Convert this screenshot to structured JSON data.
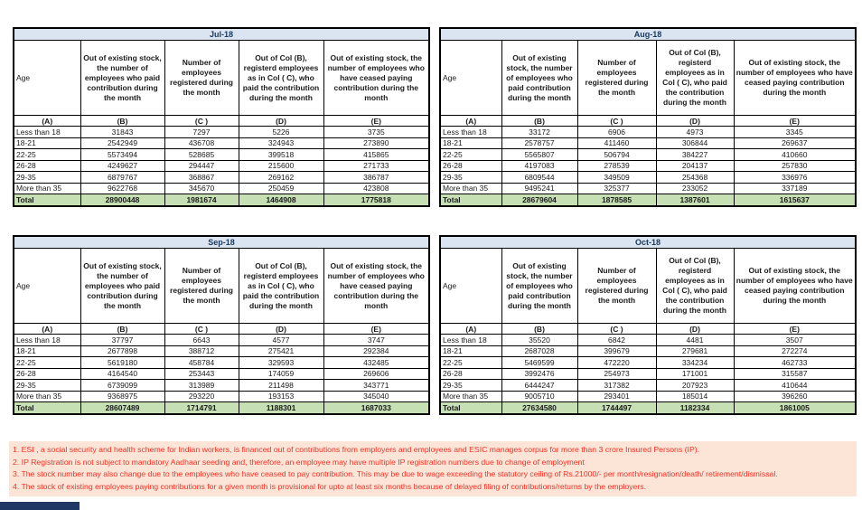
{
  "columns": {
    "age_label": "Age",
    "col_b": "Out of existing stock, the number of employees who paid contribution during the month",
    "col_c": "Number of employees registered during the month",
    "col_d": "Out of Col (B), registerd employees as in Col ( C), who paid the contribution during the month",
    "col_e": "Out of existing stock, the number of  employees who have ceased paying contribution during the month",
    "letters": [
      "(A)",
      "(B)",
      "(C )",
      "(D)",
      "(E)"
    ]
  },
  "age_groups": [
    "Less than 18",
    "18-21",
    "22-25",
    "26-28",
    "29-35",
    "More than 35"
  ],
  "total_label": "Total",
  "tables": [
    {
      "title": "Jul-18",
      "rows": [
        [
          31843,
          7297,
          5226,
          3735
        ],
        [
          2542949,
          436708,
          324943,
          273890
        ],
        [
          5573494,
          528685,
          399518,
          415865
        ],
        [
          4249627,
          294447,
          215600,
          271733
        ],
        [
          6879767,
          368867,
          269162,
          386787
        ],
        [
          9622768,
          345670,
          250459,
          423808
        ]
      ],
      "total": [
        28900448,
        1981674,
        1464908,
        1775818
      ]
    },
    {
      "title": "Aug-18",
      "rows": [
        [
          33172,
          6906,
          4973,
          3345
        ],
        [
          2578757,
          411460,
          306844,
          269637
        ],
        [
          5565807,
          506794,
          384227,
          410660
        ],
        [
          4197083,
          278539,
          204137,
          257830
        ],
        [
          6809544,
          349509,
          254368,
          336976
        ],
        [
          9495241,
          325377,
          233052,
          337189
        ]
      ],
      "total": [
        28679604,
        1878585,
        1387601,
        1615637
      ]
    },
    {
      "title": "Sep-18",
      "rows": [
        [
          37797,
          6643,
          4577,
          3747
        ],
        [
          2677898,
          388712,
          275421,
          292384
        ],
        [
          5619180,
          458784,
          329593,
          432485
        ],
        [
          4164540,
          253443,
          174059,
          269606
        ],
        [
          6739099,
          313989,
          211498,
          343771
        ],
        [
          9368975,
          293220,
          193153,
          345040
        ]
      ],
      "total": [
        28607489,
        1714791,
        1188301,
        1687033
      ]
    },
    {
      "title": "Oct-18",
      "rows": [
        [
          35520,
          6842,
          4481,
          3507
        ],
        [
          2687028,
          399679,
          279681,
          272274
        ],
        [
          5469599,
          472220,
          334234,
          462733
        ],
        [
          3992476,
          254973,
          171001,
          315587
        ],
        [
          6444247,
          317382,
          207923,
          410644
        ],
        [
          9005710,
          293401,
          185014,
          396260
        ]
      ],
      "total": [
        27634580,
        1744497,
        1182334,
        1861005
      ]
    }
  ],
  "footnotes": [
    "1. ESI , a social security and health scheme for Indian workers, is financed out of contributions from employers and employees and ESIC manages corpus for more than 3 crore Insured Persons (IP).",
    "2. IP Registration is not subject to mandatory Aadhaar seeding and, therefore, an employee may have multiple IP registration numbers due to change of employment",
    "3. The stock number may also change due to the employees who have ceased to pay contribution. This may  be due to wage exceeding the statutory ceiling of  Rs.21000/- per month/resignation/death/ retirement/dismissal.",
    "4. The stock of existing employees paying contributions for a given month is provisional for upto at least six months because of delayed filing of contributions/returns by the employers."
  ],
  "colors": {
    "title_bg": "#dbe5f1",
    "title_text": "#17375e",
    "total_bg": "#c6e0b4",
    "footnote_bg": "#fce4d6",
    "footnote_text": "#e8362a",
    "bottom_bar": "#1f3864",
    "border": "#000000"
  }
}
